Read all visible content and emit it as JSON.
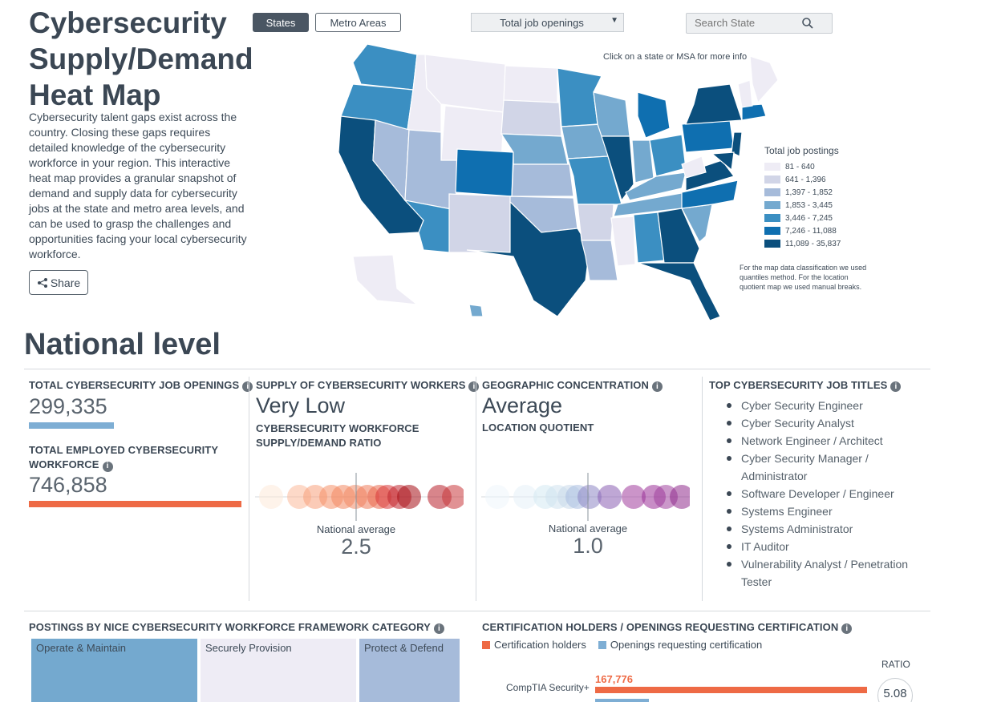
{
  "header": {
    "title": "Cybersecurity Supply/Demand Heat Map",
    "intro": "Cybersecurity talent gaps exist across the country. Closing these gaps requires detailed knowledge of the cybersecurity workforce in your region. This interactive heat map provides a granular snapshot of demand and supply data for cybersecurity jobs at the state and metro area levels, and can be used to grasp the challenges and opportunities facing your local cybersecurity workforce.",
    "share_label": "Share"
  },
  "map_controls": {
    "tab_states": "States",
    "tab_metro": "Metro Areas",
    "measure_selected": "Total job openings",
    "search_placeholder": "Search State",
    "hint": "Click on a state or MSA for more info"
  },
  "legend": {
    "title": "Total job postings",
    "items": [
      {
        "label": "81 - 640",
        "color": "#eeecf5"
      },
      {
        "label": "641 - 1,396",
        "color": "#d1d5e7"
      },
      {
        "label": "1,397 - 1,852",
        "color": "#a6bbda"
      },
      {
        "label": "1,853 - 3,445",
        "color": "#74a9cf"
      },
      {
        "label": "3,446 - 7,245",
        "color": "#3b8fc2"
      },
      {
        "label": "7,246 - 11,088",
        "color": "#0f6fb0"
      },
      {
        "label": "11,089 - 35,837",
        "color": "#0b4f7d"
      }
    ],
    "note": "For the map data classification we used quantiles method. For the location quotient map we used manual breaks."
  },
  "national": {
    "heading": "National level",
    "total_openings_label": "TOTAL CYBERSECURITY JOB OPENINGS",
    "total_openings_value": "299,335",
    "total_openings_bar_fraction": 0.4,
    "total_employed_label": "TOTAL EMPLOYED CYBERSECURITY WORKFORCE",
    "total_employed_value": "746,858",
    "total_employed_bar_fraction": 1.0,
    "supply_label": "SUPPLY OF CYBERSECURITY WORKERS",
    "supply_rating": "Very Low",
    "ratio_label": "CYBERSECURITY WORKFORCE SUPPLY/DEMAND RATIO",
    "ratio_avg_label": "National average",
    "ratio_avg_value": "2.5",
    "geo_label": "GEOGRAPHIC CONCENTRATION",
    "geo_rating": "Average",
    "lq_label": "LOCATION QUOTIENT",
    "lq_avg_label": "National average",
    "lq_avg_value": "1.0",
    "top_titles_label": "TOP CYBERSECURITY JOB TITLES",
    "top_titles": [
      "Cyber Security Engineer",
      "Cyber Security Analyst",
      "Network Engineer / Architect",
      "Cyber Security Manager / Administrator",
      "Software Developer / Engineer",
      "Systems Engineer",
      "Systems Administrator",
      "IT Auditor",
      "Vulnerability Analyst / Penetration Tester"
    ]
  },
  "nice": {
    "label": "POSTINGS BY NICE CYBERSECURITY WORKFORCE FRAMEWORK CATEGORY",
    "categories": [
      "Operate & Maintain",
      "Securely Provision",
      "Protect & Defend"
    ]
  },
  "certs": {
    "label": "CERTIFICATION HOLDERS / OPENINGS REQUESTING CERTIFICATION",
    "legend_holders": "Certification holders",
    "legend_openings": "Openings requesting certification",
    "ratio_header": "RATIO",
    "rows": [
      {
        "name": "CompTIA Security+",
        "holders": "167,776",
        "ratio": "5.08"
      }
    ]
  },
  "colors": {
    "accent_orange": "#ee6a45",
    "accent_blue": "#7eaed4",
    "dark": "#3b4754"
  }
}
